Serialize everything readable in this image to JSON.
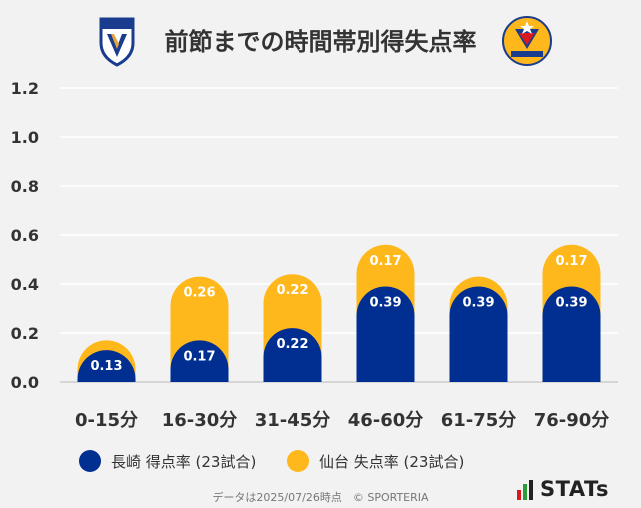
{
  "title": "前節までの時間帯別得失点率",
  "colors": {
    "nagasaki": "#002f91",
    "sendai": "#ffb81c",
    "grid": "#ffffff",
    "axis_text": "#333333"
  },
  "legend": {
    "nagasaki": "長崎 得点率 (23試合)",
    "sendai": "仙台 失点率 (23試合)"
  },
  "footer": "データは2025/07/26時点　© SPORTERIA",
  "brand": "STATs",
  "chart_data": {
    "type": "bar",
    "stacked": true,
    "categories": [
      "0-15分",
      "16-30分",
      "31-45分",
      "46-60分",
      "61-75分",
      "76-90分"
    ],
    "series": [
      {
        "name": "長崎 得点率 (23試合)",
        "values": [
          0.13,
          0.17,
          0.22,
          0.39,
          0.39,
          0.39
        ]
      },
      {
        "name": "仙台 失点率 (23試合)",
        "values": [
          0.04,
          0.26,
          0.22,
          0.17,
          0.04,
          0.17
        ]
      }
    ],
    "data_labels": [
      [
        "0.13",
        "0.17",
        "0.22",
        "0.39",
        "0.39",
        "0.39"
      ],
      [
        "",
        "0.26",
        "0.22",
        "0.17",
        "",
        "0.17"
      ]
    ],
    "yticks": [
      "0.0",
      "0.2",
      "0.4",
      "0.6",
      "0.8",
      "1.0",
      "1.2"
    ],
    "ylim": [
      0,
      1.2
    ],
    "grid": true,
    "legend_position": "bottom"
  }
}
